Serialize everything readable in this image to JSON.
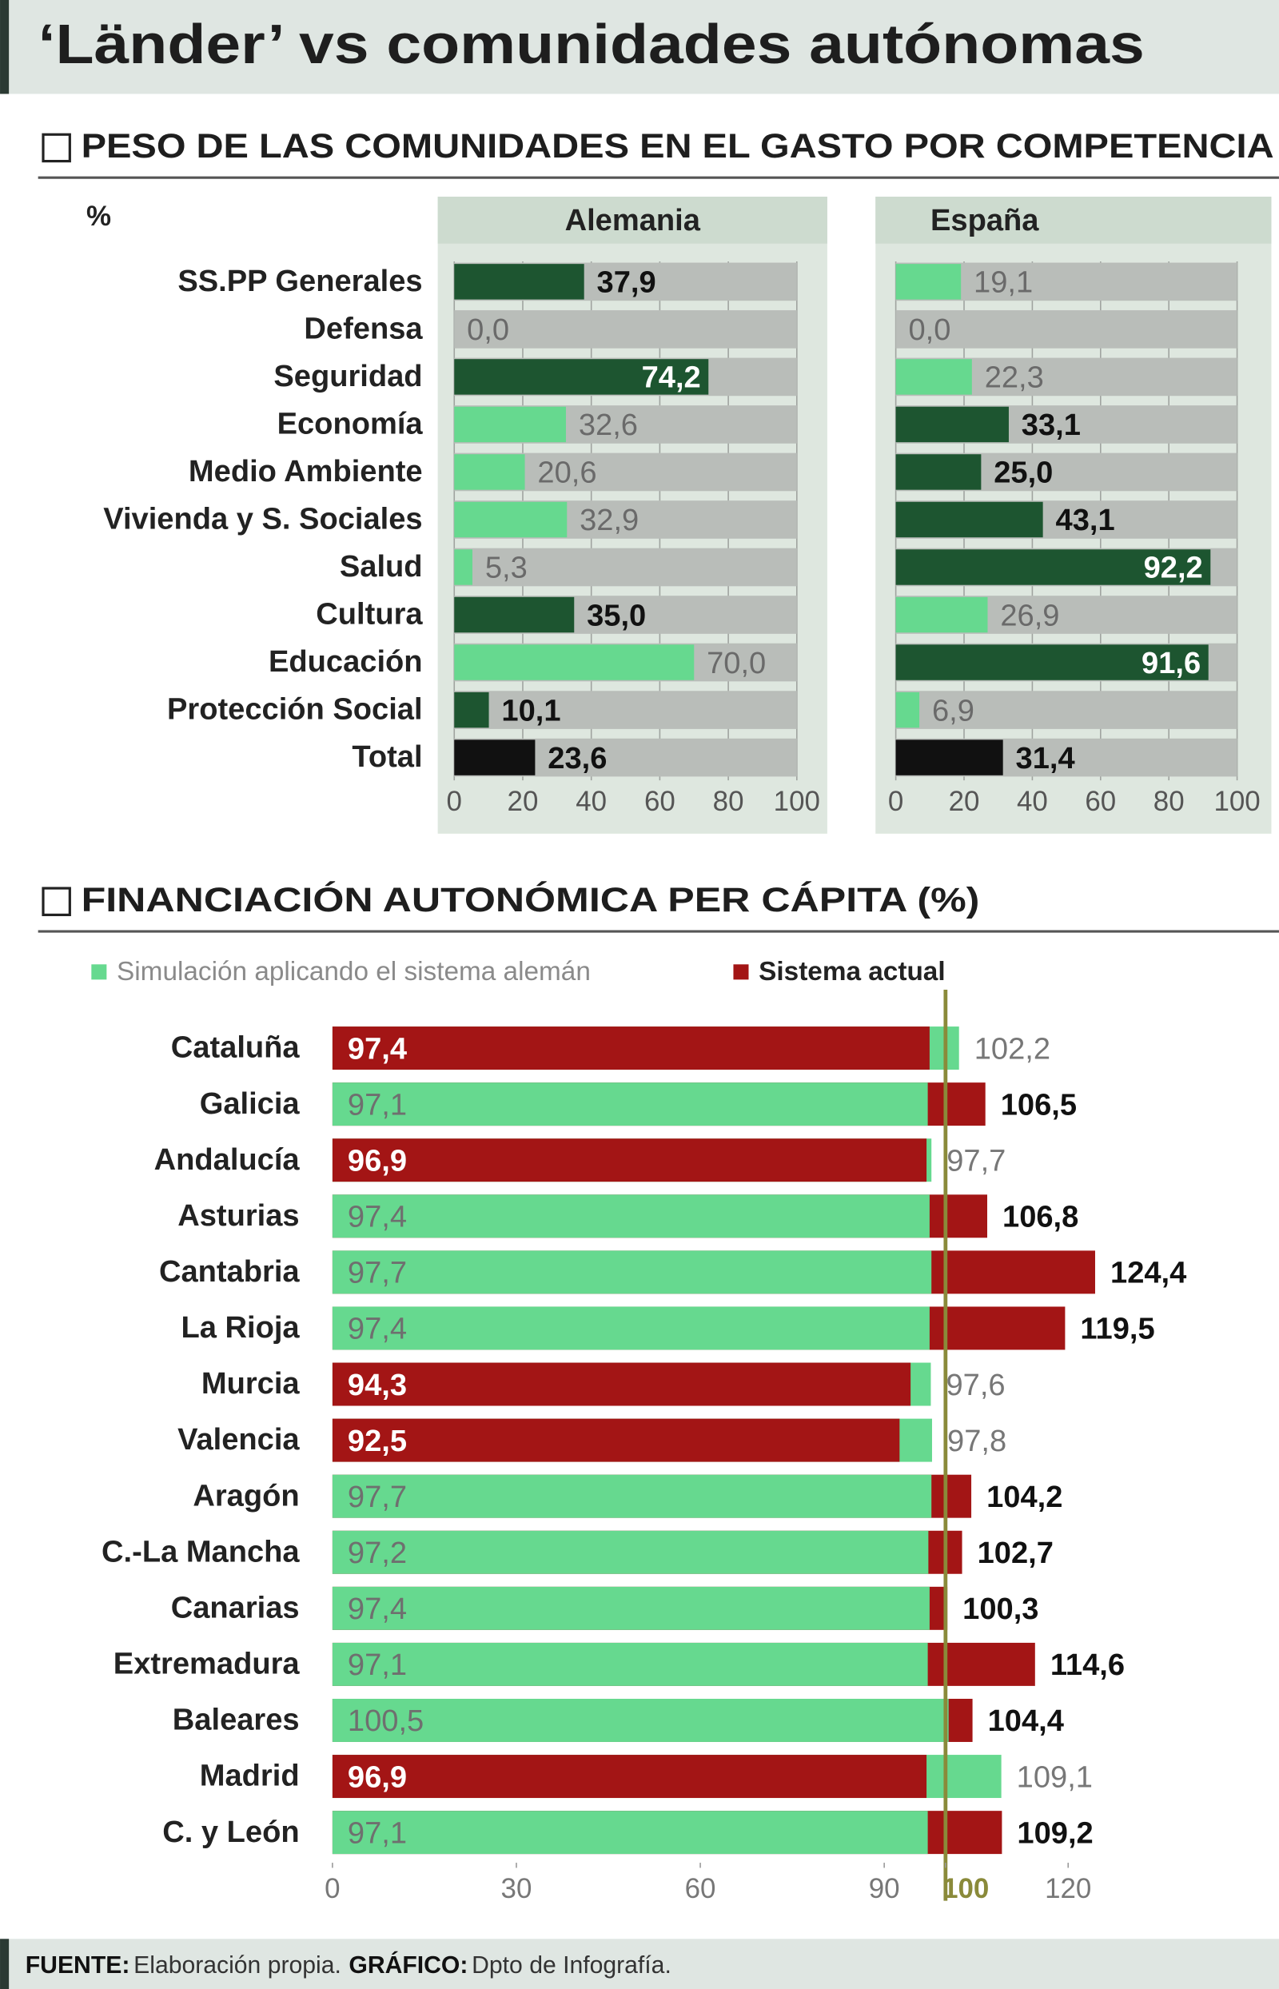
{
  "title": "‘Länder’ vs comunidades autónomas",
  "sections": [
    {
      "title": "PESO DE LAS COMUNIDADES EN EL GASTO POR COMPETENCIA",
      "unit": "%"
    },
    {
      "title": "FINANCIACIÓN AUTONÓMICA PER CÁPITA (%)"
    }
  ],
  "chart_data": [
    {
      "type": "hbar",
      "title": "Alemania",
      "categories": [
        "SS.PP Generales",
        "Defensa",
        "Seguridad",
        "Economía",
        "Medio Ambiente",
        "Vivienda y S. Sociales",
        "Salud",
        "Cultura",
        "Educación",
        "Protección Social",
        "Total"
      ],
      "values": [
        37.9,
        0.0,
        74.2,
        32.6,
        20.6,
        32.9,
        5.3,
        35.0,
        70.0,
        10.1,
        23.6
      ],
      "value_labels": [
        "37,9",
        "0,0",
        "74,2",
        "32,6",
        "20,6",
        "32,9",
        "5,3",
        "35,0",
        "70,0",
        "10,1",
        "23,6"
      ],
      "colors": [
        "#1d5530",
        "#66d98f",
        "#1d5530",
        "#66d98f",
        "#66d98f",
        "#66d98f",
        "#66d98f",
        "#1d5530",
        "#66d98f",
        "#1d5530",
        "#111111"
      ],
      "xlim": [
        0,
        100
      ],
      "xticks": [
        0,
        20,
        40,
        60,
        80,
        100
      ]
    },
    {
      "type": "hbar",
      "title": "España",
      "values": [
        19.1,
        0.0,
        22.3,
        33.1,
        25.0,
        43.1,
        92.2,
        26.9,
        91.6,
        6.9,
        31.4
      ],
      "value_labels": [
        "19,1",
        "0,0",
        "22,3",
        "33,1",
        "25,0",
        "43,1",
        "92,2",
        "26,9",
        "91,6",
        "6,9",
        "31,4"
      ],
      "colors": [
        "#66d98f",
        "#66d98f",
        "#66d98f",
        "#1d5530",
        "#1d5530",
        "#1d5530",
        "#1d5530",
        "#66d98f",
        "#1d5530",
        "#66d98f",
        "#111111"
      ],
      "xlim": [
        0,
        100
      ],
      "xticks": [
        0,
        20,
        40,
        60,
        80,
        100
      ]
    },
    {
      "type": "overlap",
      "legend": "top-left",
      "categories": [
        "Cataluña",
        "Galicia",
        "Andalucía",
        "Asturias",
        "Cantabria",
        "La Rioja",
        "Murcia",
        "Valencia",
        "Aragón",
        "C.-La Mancha",
        "Canarias",
        "Extremadura",
        "Baleares",
        "Madrid",
        "C. y León"
      ],
      "series": [
        {
          "name": "Simulación aplicando el sistema alemán",
          "color": "#66d98f",
          "values": [
            102.2,
            97.1,
            97.7,
            97.4,
            97.7,
            97.4,
            97.6,
            97.8,
            97.7,
            97.2,
            97.4,
            97.1,
            100.5,
            109.1,
            97.1
          ],
          "value_labels": [
            "102,2",
            "97,1",
            "97,7",
            "97,4",
            "97,7",
            "97,4",
            "97,6",
            "97,8",
            "97,7",
            "97,2",
            "97,4",
            "97,1",
            "100,5",
            "109,1",
            "97,1"
          ]
        },
        {
          "name": "Sistema actual",
          "color": "#a31515",
          "values": [
            97.4,
            106.5,
            96.9,
            106.8,
            124.4,
            119.5,
            94.3,
            92.5,
            104.2,
            102.7,
            100.3,
            114.6,
            104.4,
            96.9,
            109.2
          ],
          "value_labels": [
            "97,4",
            "106,5",
            "96,9",
            "106,8",
            "124,4",
            "119,5",
            "94,3",
            "92,5",
            "104,2",
            "102,7",
            "100,3",
            "114,6",
            "104,4",
            "96,9",
            "109,2"
          ]
        }
      ],
      "xlim": [
        0,
        125
      ],
      "xticks": [
        0,
        30,
        60,
        90,
        100,
        120
      ],
      "reference_line": {
        "value": 100,
        "color": "#8a8a3a"
      }
    }
  ],
  "footer": [
    {
      "label": "FUENTE:",
      "text": "Elaboración propia."
    },
    {
      "label": "GRÁFICO:",
      "text": "Dpto de Infografía."
    }
  ]
}
